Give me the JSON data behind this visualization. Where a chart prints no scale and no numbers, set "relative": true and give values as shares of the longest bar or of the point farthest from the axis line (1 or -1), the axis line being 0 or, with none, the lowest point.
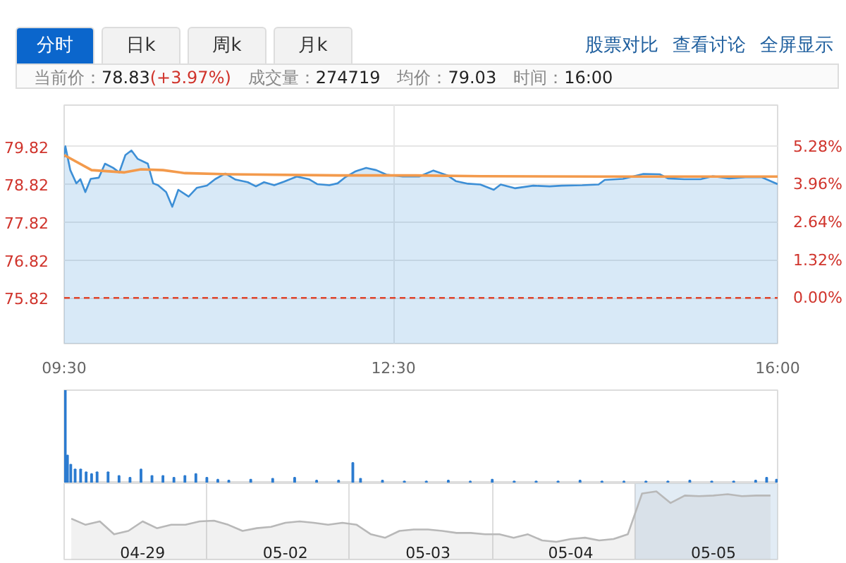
{
  "chart_data": [
    {
      "type": "line",
      "annotations": [
        "分时",
        "日k",
        "周k",
        "月k",
        "股票对比",
        "查看讨论",
        "全屏显示",
        "当前价：",
        "78.83",
        "(+3.97%)",
        "成交量：",
        "274719",
        "均价：",
        "79.03",
        "时间：",
        "16:00"
      ],
      "xlim": [
        9.5,
        16
      ],
      "xticks": [
        {
          "value": 9.5,
          "label": "09:30"
        },
        {
          "value": 12.5,
          "label": "12:30"
        },
        {
          "value": 16,
          "label": "16:00"
        }
      ],
      "ylim": [
        74.61,
        80.92
      ],
      "yticks": [
        75.82,
        76.82,
        77.82,
        78.82,
        79.82
      ],
      "y2lim": [
        -1.6,
        6.73
      ],
      "y2ticks": [
        {
          "value": 0,
          "label": "0.00%"
        },
        {
          "value": 1.32,
          "label": "1.32%"
        },
        {
          "value": 2.64,
          "label": "2.64%"
        },
        {
          "value": 3.96,
          "label": "3.96%"
        },
        {
          "value": 5.28,
          "label": "5.28%"
        }
      ],
      "grid": true,
      "ref_lines": [
        {
          "axis": "y",
          "value": 75.82,
          "color": "#e0452c",
          "line_style": "dashed"
        }
      ],
      "series": [
        {
          "type": "area",
          "color": "#3d8fd6",
          "x": [
            9.5,
            9.511,
            9.556,
            9.611,
            9.648,
            9.693,
            9.742,
            9.816,
            9.872,
            9.946,
            10.002,
            10.058,
            10.113,
            10.169,
            10.262,
            10.311,
            10.355,
            10.429,
            10.485,
            10.54,
            10.634,
            10.708,
            10.801,
            10.875,
            10.968,
            11.061,
            11.173,
            11.247,
            11.321,
            11.414,
            11.507,
            11.619,
            11.73,
            11.805,
            11.916,
            11.991,
            12.065,
            12.157,
            12.251,
            12.343,
            12.436,
            12.585,
            12.734,
            12.864,
            12.993,
            13.068,
            13.18,
            13.291,
            13.414,
            13.477,
            13.606,
            13.774,
            13.923,
            14.034,
            14.22,
            14.369,
            14.425,
            14.592,
            14.777,
            14.926,
            15.001,
            15.149,
            15.298,
            15.409,
            15.558,
            15.707,
            15.856,
            16.0
          ],
          "values": [
            79.54,
            79.83,
            79.2,
            78.85,
            78.96,
            78.62,
            78.97,
            79.0,
            79.37,
            79.26,
            79.14,
            79.6,
            79.72,
            79.5,
            79.37,
            78.85,
            78.8,
            78.62,
            78.23,
            78.68,
            78.5,
            78.73,
            78.79,
            78.96,
            79.11,
            78.95,
            78.88,
            78.77,
            78.88,
            78.8,
            78.9,
            79.03,
            78.96,
            78.83,
            78.8,
            78.85,
            79.02,
            79.17,
            79.26,
            79.2,
            79.08,
            79.03,
            79.03,
            79.19,
            79.06,
            78.91,
            78.84,
            78.82,
            78.68,
            78.82,
            78.72,
            78.79,
            78.77,
            78.79,
            78.8,
            78.82,
            78.94,
            78.97,
            79.1,
            79.09,
            78.98,
            78.96,
            78.96,
            79.04,
            78.98,
            79.01,
            79.01,
            78.83
          ]
        },
        {
          "type": "line",
          "color": "#f39a4c",
          "x": [
            9.5,
            9.75,
            10.05,
            10.2,
            10.4,
            10.6,
            11.0,
            12.0,
            12.7,
            13.3,
            14.4,
            16.0
          ],
          "values": [
            79.6,
            79.2,
            79.14,
            79.22,
            79.2,
            79.12,
            79.09,
            79.06,
            79.06,
            79.04,
            79.03,
            79.03
          ]
        }
      ]
    },
    {
      "type": "bar",
      "relative": true,
      "color": "#2b7bd0",
      "xlim": [
        9.5,
        16
      ],
      "x": [
        9.51,
        9.53,
        9.56,
        9.6,
        9.65,
        9.7,
        9.75,
        9.8,
        9.9,
        10.0,
        10.1,
        10.2,
        10.3,
        10.4,
        10.5,
        10.6,
        10.7,
        10.8,
        10.9,
        11.0,
        11.2,
        11.4,
        11.6,
        11.8,
        12.0,
        12.13,
        12.2,
        12.4,
        12.6,
        12.8,
        13.0,
        13.2,
        13.4,
        13.6,
        13.8,
        14.0,
        14.2,
        14.4,
        14.6,
        14.8,
        15.0,
        15.2,
        15.4,
        15.6,
        15.8,
        15.9,
        15.99
      ],
      "values": [
        1.0,
        0.3,
        0.2,
        0.15,
        0.15,
        0.12,
        0.1,
        0.12,
        0.12,
        0.08,
        0.06,
        0.15,
        0.08,
        0.08,
        0.06,
        0.08,
        0.1,
        0.06,
        0.04,
        0.03,
        0.04,
        0.05,
        0.06,
        0.03,
        0.03,
        0.22,
        0.05,
        0.03,
        0.02,
        0.02,
        0.03,
        0.02,
        0.04,
        0.02,
        0.02,
        0.02,
        0.03,
        0.02,
        0.02,
        0.02,
        0.02,
        0.03,
        0.02,
        0.02,
        0.03,
        0.06,
        0.04
      ]
    },
    {
      "type": "area",
      "relative": true,
      "color": "#b8b8b8",
      "grid": "x",
      "categories": [
        null,
        null,
        null,
        null,
        null,
        "04-29",
        null,
        null,
        null,
        null,
        null,
        null,
        null,
        null,
        null,
        "05-02",
        null,
        null,
        null,
        null,
        null,
        null,
        null,
        null,
        null,
        "05-03",
        null,
        null,
        null,
        null,
        null,
        null,
        null,
        null,
        null,
        "05-04",
        null,
        null,
        null,
        null,
        null,
        null,
        null,
        null,
        null,
        "05-05",
        null,
        null,
        null,
        null
      ],
      "values": [
        0.6,
        0.51,
        0.56,
        0.37,
        0.42,
        0.56,
        0.46,
        0.51,
        0.51,
        0.56,
        0.57,
        0.51,
        0.42,
        0.46,
        0.48,
        0.54,
        0.56,
        0.54,
        0.51,
        0.54,
        0.51,
        0.37,
        0.32,
        0.42,
        0.44,
        0.44,
        0.42,
        0.39,
        0.39,
        0.37,
        0.37,
        0.32,
        0.37,
        0.28,
        0.26,
        0.3,
        0.32,
        0.28,
        0.3,
        0.37,
        0.97,
        1,
        0.83,
        0.94,
        0.93,
        0.94,
        0.96,
        0.93,
        0.94,
        0.94
      ]
    }
  ]
}
